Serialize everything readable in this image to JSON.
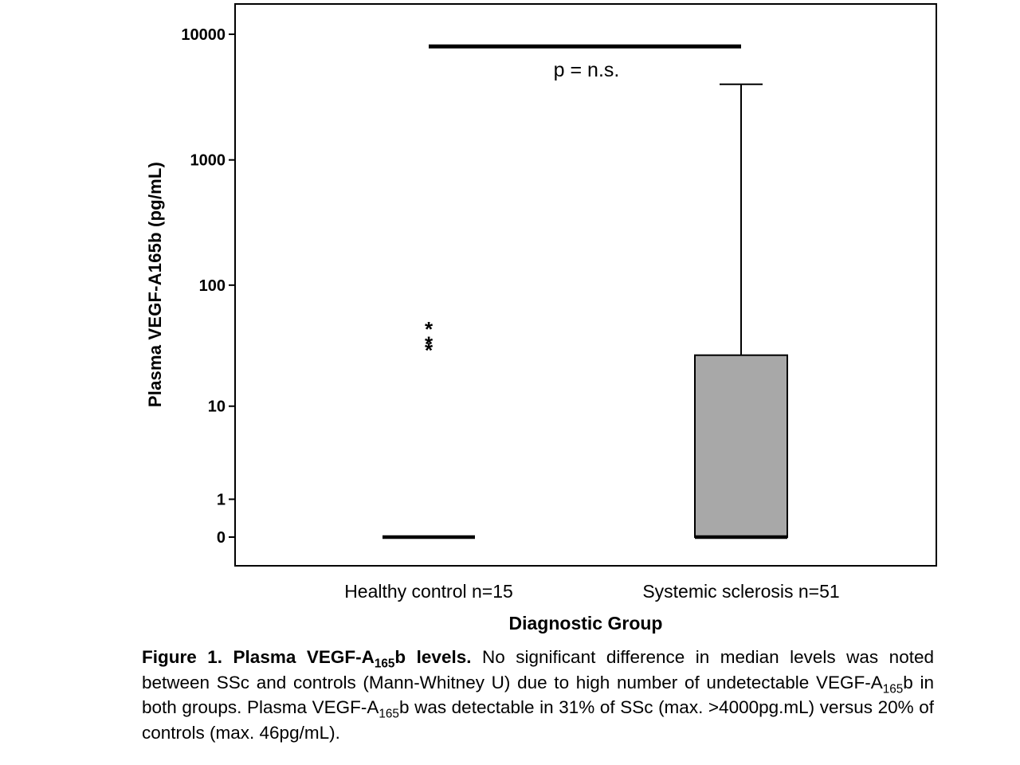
{
  "chart_data": {
    "type": "box",
    "title": "",
    "xlabel": "Diagnostic Group",
    "ylabel": "Plasma VEGF-A165b (pg/mL)",
    "y_scale": "log10(value+1)",
    "yticks": [
      10000,
      1000,
      100,
      10,
      1,
      0
    ],
    "ylim": [
      0,
      20000
    ],
    "grid": false,
    "groups": [
      {
        "label": "Healthy control n=15",
        "median": 0,
        "q1": 0,
        "q3": 0,
        "whisker_low": 0,
        "whisker_high": 0,
        "outliers": [
          46,
          35,
          31
        ],
        "box_fill": "#a8a8a8"
      },
      {
        "label": "Systemic sclerosis n=51",
        "median": 0,
        "q1": 0,
        "q3": 27,
        "whisker_low": 0,
        "whisker_high": 4000,
        "outliers": [],
        "box_fill": "#a8a8a8"
      }
    ],
    "significance": {
      "label": "p = n.s.",
      "bar_value": 8000,
      "between": [
        0,
        1
      ]
    }
  },
  "caption": {
    "segments": [
      {
        "text": "Figure 1. Plasma VEGF-A",
        "bold": true,
        "sub": false
      },
      {
        "text": "165",
        "bold": true,
        "sub": true
      },
      {
        "text": "b levels. ",
        "bold": true,
        "sub": false
      },
      {
        "text": "No significant difference in median levels was noted between SSc and controls (Mann-Whitney U) due to high number of undetectable VEGF-A",
        "bold": false,
        "sub": false
      },
      {
        "text": "165",
        "bold": false,
        "sub": true
      },
      {
        "text": "b in both groups. Plasma VEGF-A",
        "bold": false,
        "sub": false
      },
      {
        "text": "165",
        "bold": false,
        "sub": true
      },
      {
        "text": "b was detectable in 31% of SSc (max. >4000pg.mL) versus 20% of controls (max. 46pg/mL).",
        "bold": false,
        "sub": false
      }
    ]
  },
  "colors": {
    "box_fill": "#a8a8a8",
    "stroke": "#000000",
    "background": "#ffffff"
  }
}
